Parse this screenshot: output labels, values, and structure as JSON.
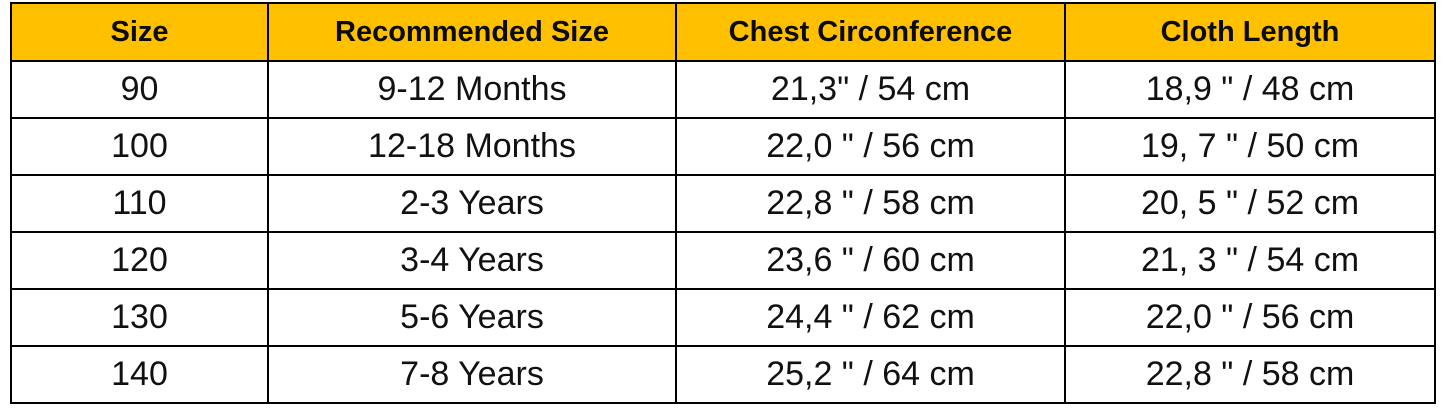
{
  "colors": {
    "header_background": "#ffc000",
    "border": "#000000",
    "text": "#111111"
  },
  "table": {
    "headers": [
      "Size",
      "Recommended Size",
      "Chest Circonference",
      "Cloth Length"
    ],
    "rows": [
      [
        "90",
        "9-12 Months",
        "21,3\" / 54 cm",
        "18,9 \" / 48 cm"
      ],
      [
        "100",
        "12-18 Months",
        "22,0 \" / 56 cm",
        "19, 7 \" / 50 cm"
      ],
      [
        "110",
        "2-3 Years",
        "22,8 \" / 58 cm",
        "20, 5 \" / 52 cm"
      ],
      [
        "120",
        "3-4 Years",
        "23,6 \" / 60 cm",
        "21, 3 \" / 54 cm"
      ],
      [
        "130",
        "5-6 Years",
        "24,4 \" / 62 cm",
        "22,0 \" / 56 cm"
      ],
      [
        "140",
        "7-8 Years",
        "25,2 \" / 64 cm",
        "22,8 \" / 58 cm"
      ]
    ]
  }
}
